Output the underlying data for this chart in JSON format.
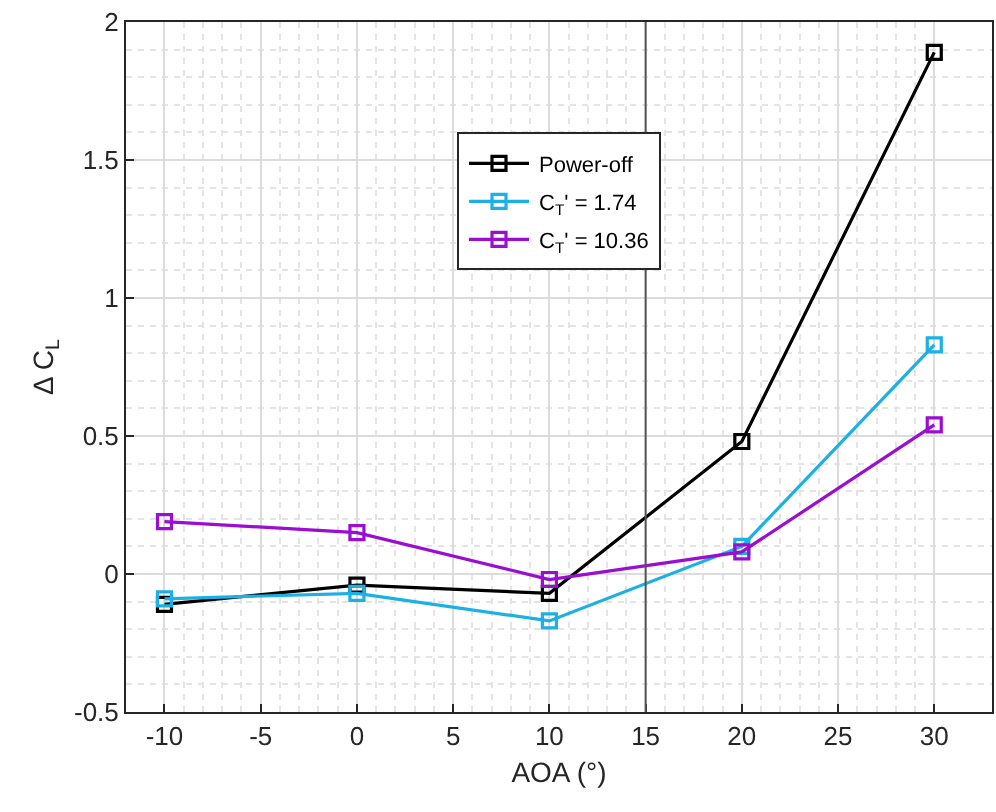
{
  "chart_data": {
    "type": "line",
    "xlabel": "AOA (°)",
    "ylabel": "Δ C$_{L}$",
    "x": [
      -10,
      0,
      10,
      20,
      30
    ],
    "series": [
      {
        "name": "Power-off",
        "color": "#000000",
        "values": [
          -0.11,
          -0.04,
          -0.07,
          0.48,
          1.89
        ]
      },
      {
        "name": "C$_{T}$' = 1.74",
        "color": "#1cb0e4",
        "values": [
          -0.09,
          -0.07,
          -0.17,
          0.1,
          0.83
        ]
      },
      {
        "name": "C$_{T}$' = 10.36",
        "color": "#9b0dd0",
        "values": [
          0.19,
          0.15,
          -0.02,
          0.08,
          0.54
        ]
      }
    ],
    "xlim": [
      -12,
      33
    ],
    "xticks": [
      -10,
      -5,
      0,
      5,
      10,
      15,
      20,
      25,
      30
    ],
    "ylim": [
      -0.5,
      2
    ],
    "yticks": [
      -0.5,
      0,
      0.5,
      1,
      1.5,
      2
    ],
    "ref_lines": [
      {
        "axis": "x",
        "value": 15,
        "color": "#555555"
      }
    ],
    "grid": true,
    "legend": "top",
    "marker": "square",
    "line_style": "solid"
  }
}
